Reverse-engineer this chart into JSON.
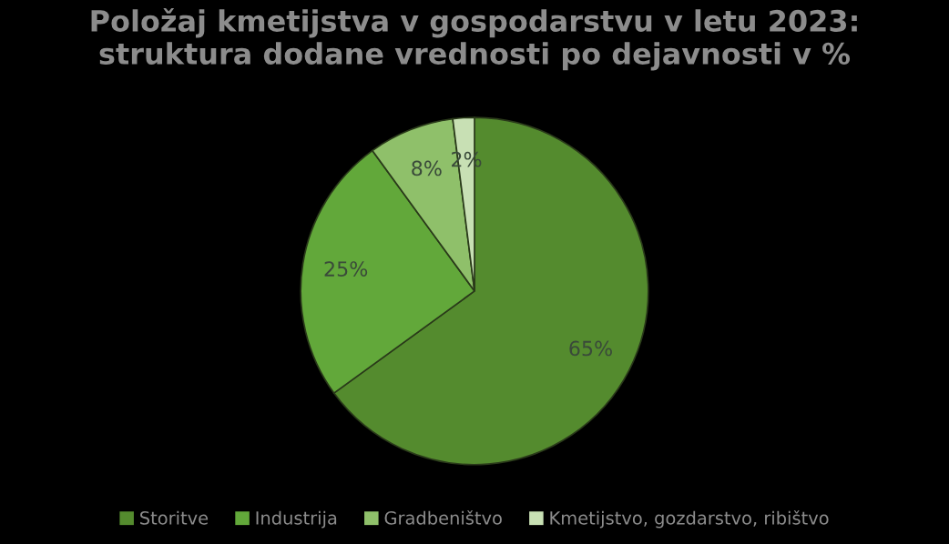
{
  "chart_data": {
    "type": "pie",
    "title": "Položaj kmetijstva v gospodarstvu v letu 2023:\nstruktura dodane vrednosti po dejavnosti v %",
    "categories": [
      "Storitve",
      "Industrija",
      "Gradbeništvo",
      "Kmetijstvo, gozdarstvo, ribištvo"
    ],
    "values": [
      65,
      25,
      8,
      2
    ],
    "colors": [
      "#548b2e",
      "#62a83a",
      "#8fc06a",
      "#c8e0b4"
    ],
    "value_labels": [
      "65%",
      "25%",
      "8%",
      "2%"
    ],
    "legend": "bottom"
  }
}
